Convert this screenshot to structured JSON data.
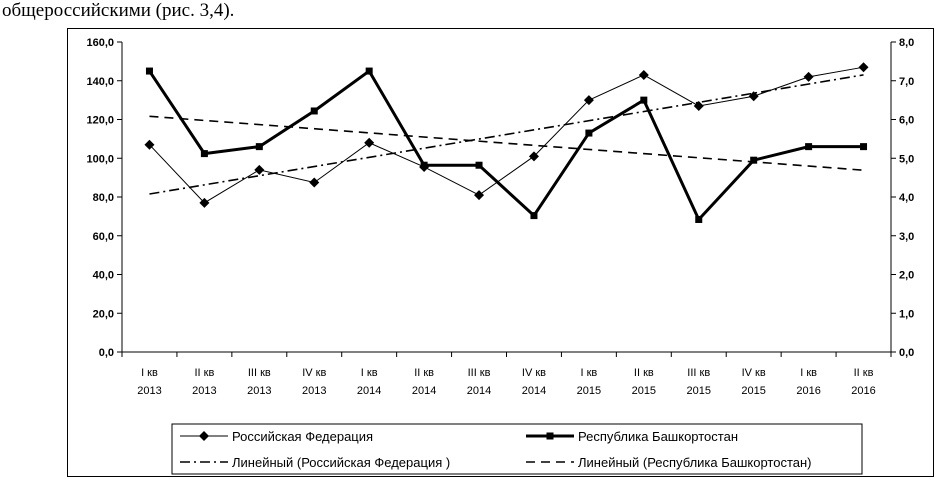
{
  "caption": "общероссийскими (рис. 3,4).",
  "chart_data": {
    "type": "line",
    "categories": [
      [
        "I кв",
        "2013"
      ],
      [
        "II кв",
        "2013"
      ],
      [
        "III кв",
        "2013"
      ],
      [
        "IV  кв",
        "2013"
      ],
      [
        "I кв",
        "2014"
      ],
      [
        "II кв",
        "2014"
      ],
      [
        "III кв",
        "2014"
      ],
      [
        "IV  кв",
        "2014"
      ],
      [
        "I кв",
        "2015"
      ],
      [
        "II кв",
        "2015"
      ],
      [
        "III кв",
        "2015"
      ],
      [
        "IV  кв",
        "2015"
      ],
      [
        "I кв",
        "2016"
      ],
      [
        "II кв",
        "2016"
      ]
    ],
    "y_left": {
      "min": 0,
      "max": 160,
      "step": 20,
      "tick_labels": [
        "0,0",
        "20,0",
        "40,0",
        "60,0",
        "80,0",
        "100,0",
        "120,0",
        "140,0",
        "160,0"
      ]
    },
    "y_right": {
      "min": 0,
      "max": 8,
      "step": 1,
      "tick_labels": [
        "0,0",
        "1,0",
        "2,0",
        "3,0",
        "4,0",
        "5,0",
        "6,0",
        "7,0",
        "8,0"
      ]
    },
    "series": [
      {
        "name": "Российская Федерация",
        "axis": "left",
        "marker": "diamond",
        "color": "#000000",
        "values": [
          107,
          77,
          94,
          87.5,
          108,
          95.5,
          81,
          101,
          130,
          143,
          127,
          132,
          142,
          147
        ]
      },
      {
        "name": "Республика Башкортостан",
        "axis": "right",
        "marker": "square",
        "color": "#000000",
        "values": [
          7.25,
          5.12,
          5.3,
          6.22,
          7.25,
          4.82,
          4.82,
          3.52,
          5.65,
          6.5,
          3.42,
          4.95,
          5.3,
          5.3
        ]
      }
    ],
    "trendlines": [
      {
        "name": "Линейный (Российская Федерация )",
        "axis": "left",
        "style": "dash-dot",
        "of": "Российская Федерация"
      },
      {
        "name": "Линейный (Республика Башкортостан)",
        "axis": "right",
        "style": "long-dash",
        "of": "Республика Башкортостан"
      }
    ],
    "legend_position": "bottom",
    "grid": false
  }
}
